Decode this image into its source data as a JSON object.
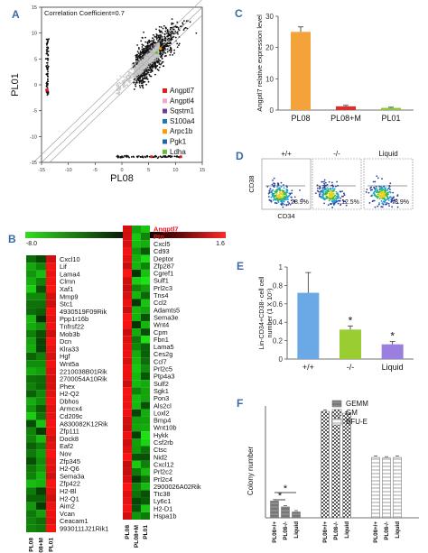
{
  "panels": {
    "A": "A",
    "B": "B",
    "C": "C",
    "D": "D",
    "E": "E",
    "F": "F"
  },
  "chart_data": [
    {
      "panel": "A",
      "type": "scatter",
      "annotation": "Correlation Coefficient=0.7",
      "xlabel": "PL08",
      "ylabel": "PL01",
      "xlim": [
        -15,
        15
      ],
      "ylim": [
        -15,
        15
      ],
      "xticks": [
        "-15",
        "-10",
        "-5",
        "0",
        "5",
        "10",
        "15"
      ],
      "yticks": [
        "-15",
        "-10",
        "-5",
        "0",
        "5",
        "10",
        "15"
      ],
      "legend": [
        {
          "name": "Angptl7",
          "color": "#e41a1c"
        },
        {
          "name": "Angptl4",
          "color": "#f4a6c6"
        },
        {
          "name": "Sqstm1",
          "color": "#6a3d9a"
        },
        {
          "name": "S100a4",
          "color": "#1f78b4"
        },
        {
          "name": "Arpc1b",
          "color": "#ff9900"
        },
        {
          "name": "Pgk1",
          "color": "#2166ac"
        },
        {
          "name": "Ldha",
          "color": "#66bd3a"
        }
      ]
    },
    {
      "panel": "B",
      "type": "heatmap",
      "scale": {
        "min": "-8.0",
        "mid": "0",
        "max": "1.6"
      },
      "columns": [
        "PL08",
        "PL08+M",
        "PL01"
      ],
      "left_genes": [
        "Cxcl10",
        "Lif",
        "Lama4",
        "Clmn",
        "Xaf1",
        "Mmp9",
        "Stc1",
        "4930519F09Rik",
        "Ppp1r16b",
        "Tnfrsf22",
        "Mob3b",
        "Dcn",
        "Klra33",
        "Hgf",
        "Wnt5a",
        "2210038B01Rik",
        "2700054A10Rik",
        "Phex",
        "H2-Q2",
        "Dbhos",
        "Armcx4",
        "Cd209c",
        "A830082K12Rik",
        "Zfp111",
        "Dock8",
        "Eaf2",
        "Nov",
        "Zfp345",
        "H2-Q6",
        "Sema3a",
        "Zfp422",
        "H2-Bl",
        "H2-Q1",
        "Aim2",
        "Vcan",
        "Ceacam1",
        "9930111J21Rik1"
      ],
      "right_genes": [
        "Angptl7",
        "Ptn",
        "Cxcl5",
        "Cd93",
        "Deptor",
        "Zfp287",
        "Cgref1",
        "Sulf1",
        "Prl2c3",
        "Tns4",
        "Ccl2",
        "Adamts5",
        "Sema3e",
        "Wnt4",
        "Cpm",
        "Fbn1",
        "Lama5",
        "Ces2g",
        "Ccl7",
        "Prl2c5",
        "Ptp4a3",
        "Sulf2",
        "Sgk1",
        "Pon3",
        "Als2cl",
        "Loxl2",
        "Bmp4",
        "Wnt10b",
        "Hykk",
        "Csf2rb",
        "Ctsc",
        "Nid2",
        "Cxcl12",
        "Prl2c2",
        "Prl2c4",
        "2900026A02Rik",
        "Ttc38",
        "Ly6c1",
        "H2-D1",
        "Hspa1b"
      ],
      "highlight_genes": [
        "Angptl7",
        "Ptn"
      ]
    },
    {
      "panel": "C",
      "type": "bar",
      "ylabel": "Angptl7 relative expression level",
      "ylim": [
        0,
        30
      ],
      "yticks": [
        "0",
        "10",
        "20",
        "30"
      ],
      "categories": [
        "PL08",
        "PL08+M",
        "PL01"
      ],
      "values": [
        25,
        1.2,
        0.7
      ],
      "errors": [
        1.6,
        0.3,
        0.2
      ],
      "colors": [
        "#f4a23a",
        "#d9312b",
        "#8dc63f"
      ]
    },
    {
      "panel": "D",
      "type": "scatter",
      "ylabel": "CD38",
      "xlabel": "CD34",
      "plots": [
        {
          "title": "+/+",
          "pct": "28.9%"
        },
        {
          "title": "-/-",
          "pct": "12.5%"
        },
        {
          "title": "Liquid",
          "pct": "8.9%"
        }
      ]
    },
    {
      "panel": "E",
      "type": "bar",
      "ylabel": "Lin-CD34+CD38- cell number (1 X 10⁵)",
      "ylim": [
        0,
        1
      ],
      "yticks": [
        "0",
        "0.2",
        "0.4",
        "0.6",
        "0.8",
        "1"
      ],
      "categories": [
        "+/+",
        "-/-",
        "Liquid"
      ],
      "values": [
        0.72,
        0.32,
        0.16
      ],
      "errors": [
        0.22,
        0.04,
        0.03
      ],
      "significance": [
        "",
        "*",
        "*"
      ],
      "colors": [
        "#6aa9e6",
        "#9acd32",
        "#9b7fe0"
      ]
    },
    {
      "panel": "F",
      "type": "bar",
      "ylabel": "Colony number",
      "legend": [
        "GEMM",
        "GM",
        "BFU-E"
      ],
      "group_labels": [
        "PL08+/+",
        "PL08-/-",
        "Liquid"
      ],
      "groups": [
        "GEMM",
        "GM",
        "BFU-E"
      ],
      "values": {
        "GEMM": [
          10,
          6.5,
          3.5
        ],
        "GM": [
          245,
          243,
          240
        ],
        "BFU-E": [
          22,
          21,
          22
        ]
      },
      "significance": "*"
    }
  ]
}
